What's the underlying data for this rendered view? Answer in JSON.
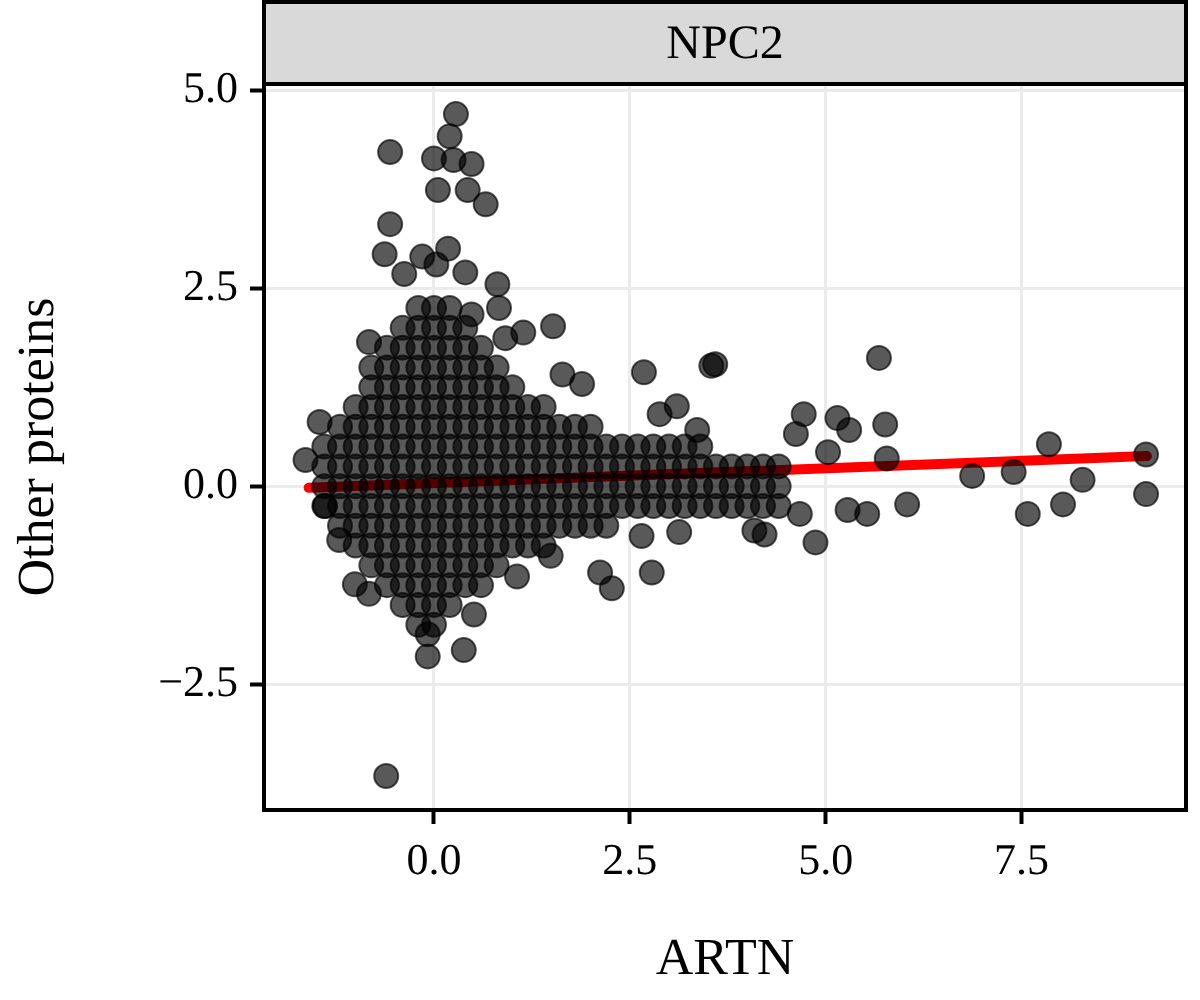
{
  "chart_data": {
    "type": "scatter",
    "title": "NPC2",
    "xlabel": "ARTN",
    "ylabel": "Other proteins",
    "xlim": [
      -2.17,
      9.6
    ],
    "ylim": [
      -4.09,
      5.08
    ],
    "xticks": [
      {
        "value": 0,
        "label": "0.0"
      },
      {
        "value": 2.5,
        "label": "2.5"
      },
      {
        "value": 5,
        "label": "5.0"
      },
      {
        "value": 7.5,
        "label": "7.5"
      }
    ],
    "yticks": [
      {
        "value": -2.5,
        "label": "−2.5"
      },
      {
        "value": 0,
        "label": "0.0"
      },
      {
        "value": 2.5,
        "label": "2.5"
      },
      {
        "value": 5,
        "label": "5.0"
      }
    ],
    "grid": true,
    "legend": false,
    "marker": "circle",
    "series": [
      {
        "color": "#000000",
        "x": [
          0.28,
          0.2,
          -0.56,
          0.0,
          0.25,
          0.48,
          0.05,
          0.43,
          0.66,
          -0.56,
          -0.63,
          -0.15,
          0.18,
          0.03,
          0.4,
          0.81,
          0.83,
          -0.38,
          0.48,
          1.14,
          1.52,
          0.91,
          -0.83,
          2.68,
          3.54,
          2.88,
          3.1,
          3.36,
          -1.46,
          -1.64,
          1.64,
          1.89,
          3.59,
          5.68,
          4.72,
          5.15,
          5.3,
          5.76,
          5.78,
          6.87,
          7.4,
          7.85,
          8.28,
          9.09,
          9.09,
          7.58,
          8.03,
          4.87,
          4.67,
          5.53,
          6.04,
          5.28,
          5.03,
          4.62,
          4.22,
          4.09,
          -0.61,
          -0.08,
          0.38,
          -0.08,
          0.51,
          -1.01,
          -0.83,
          1.06,
          1.49,
          2.27,
          2.78,
          2.12,
          3.13,
          2.65,
          -1.21,
          -1.39,
          -1.4,
          -1.4,
          -1.4,
          -1.4,
          -1.2,
          -1.2,
          -1.2,
          -1.2,
          -1.2,
          -1.2,
          -1.0,
          -1.0,
          -1.0,
          -1.0,
          -1.0,
          -1.0,
          -1.0,
          -1.0,
          -0.8,
          -0.8,
          -0.8,
          -0.8,
          -0.8,
          -0.8,
          -0.8,
          -0.8,
          -0.8,
          -0.8,
          -0.8,
          -0.6,
          -0.6,
          -0.6,
          -0.6,
          -0.6,
          -0.6,
          -0.6,
          -0.6,
          -0.6,
          -0.6,
          -0.6,
          -0.6,
          -0.6,
          -0.4,
          -0.4,
          -0.4,
          -0.4,
          -0.4,
          -0.4,
          -0.4,
          -0.4,
          -0.4,
          -0.4,
          -0.4,
          -0.4,
          -0.4,
          -0.4,
          -0.4,
          -0.2,
          -0.2,
          -0.2,
          -0.2,
          -0.2,
          -0.2,
          -0.2,
          -0.2,
          -0.2,
          -0.2,
          -0.2,
          -0.2,
          -0.2,
          -0.2,
          -0.2,
          -0.2,
          -0.2,
          0.0,
          0.0,
          0.0,
          0.0,
          0.0,
          0.0,
          0.0,
          0.0,
          0.0,
          0.0,
          0.0,
          0.0,
          0.0,
          0.0,
          0.0,
          0.0,
          0.0,
          0.2,
          0.2,
          0.2,
          0.2,
          0.2,
          0.2,
          0.2,
          0.2,
          0.2,
          0.2,
          0.2,
          0.2,
          0.2,
          0.2,
          0.2,
          0.2,
          0.4,
          0.4,
          0.4,
          0.4,
          0.4,
          0.4,
          0.4,
          0.4,
          0.4,
          0.4,
          0.4,
          0.4,
          0.4,
          0.4,
          0.6,
          0.6,
          0.6,
          0.6,
          0.6,
          0.6,
          0.6,
          0.6,
          0.6,
          0.6,
          0.6,
          0.6,
          0.6,
          0.8,
          0.8,
          0.8,
          0.8,
          0.8,
          0.8,
          0.8,
          0.8,
          0.8,
          0.8,
          0.8,
          1.0,
          1.0,
          1.0,
          1.0,
          1.0,
          1.0,
          1.0,
          1.0,
          1.0,
          1.2,
          1.2,
          1.2,
          1.2,
          1.2,
          1.2,
          1.2,
          1.2,
          1.4,
          1.4,
          1.4,
          1.4,
          1.4,
          1.4,
          1.4,
          1.4,
          1.6,
          1.6,
          1.6,
          1.6,
          1.6,
          1.6,
          1.8,
          1.8,
          1.8,
          1.8,
          1.8,
          1.8,
          2.0,
          2.0,
          2.0,
          2.0,
          2.0,
          2.0,
          2.2,
          2.2,
          2.2,
          2.2,
          2.2,
          2.4,
          2.4,
          2.4,
          2.4,
          2.6,
          2.6,
          2.6,
          2.6,
          2.8,
          2.8,
          2.8,
          2.8,
          3.0,
          3.0,
          3.0,
          3.0,
          3.2,
          3.2,
          3.2,
          3.2,
          3.4,
          3.4,
          3.4,
          3.4,
          3.6,
          3.6,
          3.6,
          3.8,
          3.8,
          3.8,
          4.0,
          4.0,
          4.0,
          4.2,
          4.2,
          4.2,
          4.4,
          4.4,
          4.4
        ],
        "values": [
          4.7,
          4.42,
          4.22,
          4.14,
          4.12,
          4.07,
          3.74,
          3.74,
          3.56,
          3.31,
          2.93,
          2.9,
          3.0,
          2.8,
          2.7,
          2.55,
          2.25,
          2.68,
          2.17,
          1.94,
          2.02,
          1.87,
          1.82,
          1.44,
          1.52,
          0.91,
          1.01,
          0.71,
          0.81,
          0.33,
          1.41,
          1.29,
          1.54,
          1.62,
          0.91,
          0.86,
          0.71,
          0.78,
          0.35,
          0.13,
          0.18,
          0.53,
          0.08,
          0.4,
          -0.1,
          -0.35,
          -0.23,
          -0.71,
          -0.35,
          -0.35,
          -0.23,
          -0.3,
          0.43,
          0.66,
          -0.61,
          -0.56,
          -3.66,
          -2.15,
          -2.07,
          -1.87,
          -1.62,
          -1.24,
          -1.36,
          -1.14,
          -0.88,
          -1.29,
          -1.09,
          -1.09,
          -0.58,
          -0.63,
          -0.68,
          -0.25,
          -0.25,
          0,
          0.25,
          0.5,
          -0.5,
          -0.25,
          0,
          0.25,
          0.5,
          0.75,
          -0.75,
          -0.5,
          -0.25,
          0,
          0.25,
          0.5,
          0.75,
          1.0,
          -1.0,
          -0.75,
          -0.5,
          -0.25,
          0,
          0.25,
          0.5,
          0.75,
          1.0,
          1.25,
          1.5,
          -1.25,
          -1.0,
          -0.75,
          -0.5,
          -0.25,
          0,
          0.25,
          0.5,
          0.75,
          1.0,
          1.25,
          1.5,
          1.75,
          -1.5,
          -1.25,
          -1.0,
          -0.75,
          -0.5,
          -0.25,
          0,
          0.25,
          0.5,
          0.75,
          1.0,
          1.25,
          1.5,
          1.75,
          2.0,
          -1.75,
          -1.5,
          -1.25,
          -1.0,
          -0.75,
          -0.5,
          -0.25,
          0,
          0.25,
          0.5,
          0.75,
          1.0,
          1.25,
          1.5,
          1.75,
          2.0,
          2.25,
          -1.75,
          -1.5,
          -1.25,
          -1.0,
          -0.75,
          -0.5,
          -0.25,
          0,
          0.25,
          0.5,
          0.75,
          1.0,
          1.25,
          1.5,
          1.75,
          2.0,
          2.25,
          -1.5,
          -1.25,
          -1.0,
          -0.75,
          -0.5,
          -0.25,
          0,
          0.25,
          0.5,
          0.75,
          1.0,
          1.25,
          1.5,
          1.75,
          2.0,
          2.25,
          -1.25,
          -1.0,
          -0.75,
          -0.5,
          -0.25,
          0,
          0.25,
          0.5,
          0.75,
          1.0,
          1.25,
          1.5,
          1.75,
          2.0,
          -1.25,
          -1.0,
          -0.75,
          -0.5,
          -0.25,
          0,
          0.25,
          0.5,
          0.75,
          1.0,
          1.25,
          1.5,
          1.75,
          -1.0,
          -0.75,
          -0.5,
          -0.25,
          0,
          0.25,
          0.5,
          0.75,
          1.0,
          1.25,
          1.5,
          -0.75,
          -0.5,
          -0.25,
          0,
          0.25,
          0.5,
          0.75,
          1.0,
          1.25,
          -0.75,
          -0.5,
          -0.25,
          0,
          0.25,
          0.5,
          0.75,
          1.0,
          -0.75,
          -0.5,
          -0.25,
          0,
          0.25,
          0.5,
          0.75,
          1.0,
          -0.5,
          -0.25,
          0,
          0.25,
          0.5,
          0.75,
          -0.5,
          -0.25,
          0,
          0.25,
          0.5,
          0.75,
          -0.5,
          -0.25,
          0,
          0.25,
          0.5,
          0.75,
          -0.5,
          -0.25,
          0,
          0.25,
          0.5,
          -0.25,
          0,
          0.25,
          0.5,
          -0.25,
          0,
          0.25,
          0.5,
          -0.25,
          0,
          0.25,
          0.5,
          -0.25,
          0,
          0.25,
          0.5,
          -0.25,
          0,
          0.25,
          0.5,
          -0.25,
          0,
          0.25,
          0.5,
          -0.25,
          0,
          0.25,
          -0.25,
          0,
          0.25,
          -0.25,
          0,
          0.25,
          -0.25,
          0,
          0.25,
          -0.25,
          0,
          0.25
        ]
      },
      {
        "type": "line",
        "marker": "none",
        "color": "#ff0000",
        "x": [
          -1.6,
          9.1
        ],
        "values": [
          -0.02,
          0.38
        ]
      }
    ]
  }
}
